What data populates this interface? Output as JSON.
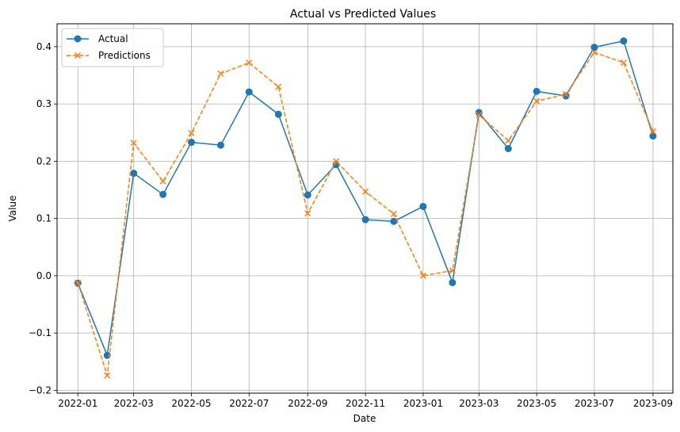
{
  "chart_data": {
    "type": "line",
    "title": "Actual vs Predicted Values",
    "xlabel": "Date",
    "ylabel": "Value",
    "grid": true,
    "legend_position": "top-left",
    "x_axis_type": "date",
    "x": [
      "2022-01",
      "2022-02",
      "2022-03",
      "2022-04",
      "2022-05",
      "2022-06",
      "2022-07",
      "2022-08",
      "2022-09",
      "2022-10",
      "2022-11",
      "2022-12",
      "2023-01",
      "2023-02",
      "2023-03",
      "2023-04",
      "2023-05",
      "2023-06",
      "2023-07",
      "2023-08",
      "2023-09"
    ],
    "xticks": [
      "2022-01",
      "2022-03",
      "2022-05",
      "2022-07",
      "2022-09",
      "2022-11",
      "2023-01",
      "2023-03",
      "2023-05",
      "2023-07",
      "2023-09"
    ],
    "xlim": [
      "2021-12-10",
      "2023-09-22"
    ],
    "ylim": [
      -0.205,
      0.44
    ],
    "yticks": [
      -0.2,
      -0.1,
      0.0,
      0.1,
      0.2,
      0.3,
      0.4
    ],
    "ytick_labels": [
      "−0.2",
      "−0.1",
      "0.0",
      "0.1",
      "0.2",
      "0.3",
      "0.4"
    ],
    "series": [
      {
        "name": "Actual",
        "color": "#1f77b4",
        "marker": "circle",
        "linestyle": "solid",
        "values": [
          -0.013,
          -0.139,
          0.179,
          0.142,
          0.233,
          0.228,
          0.321,
          0.282,
          0.141,
          0.194,
          0.098,
          0.095,
          0.121,
          -0.012,
          0.285,
          0.222,
          0.322,
          0.314,
          0.399,
          0.41,
          0.244
        ]
      },
      {
        "name": "Predictions",
        "color": "#ff7f0e",
        "marker": "x",
        "linestyle": "dashed",
        "values": [
          -0.012,
          -0.174,
          0.232,
          0.165,
          0.249,
          0.353,
          0.372,
          0.33,
          0.109,
          0.2,
          0.147,
          0.108,
          0.0,
          0.009,
          0.281,
          0.236,
          0.305,
          0.317,
          0.39,
          0.372,
          0.252
        ]
      }
    ]
  }
}
